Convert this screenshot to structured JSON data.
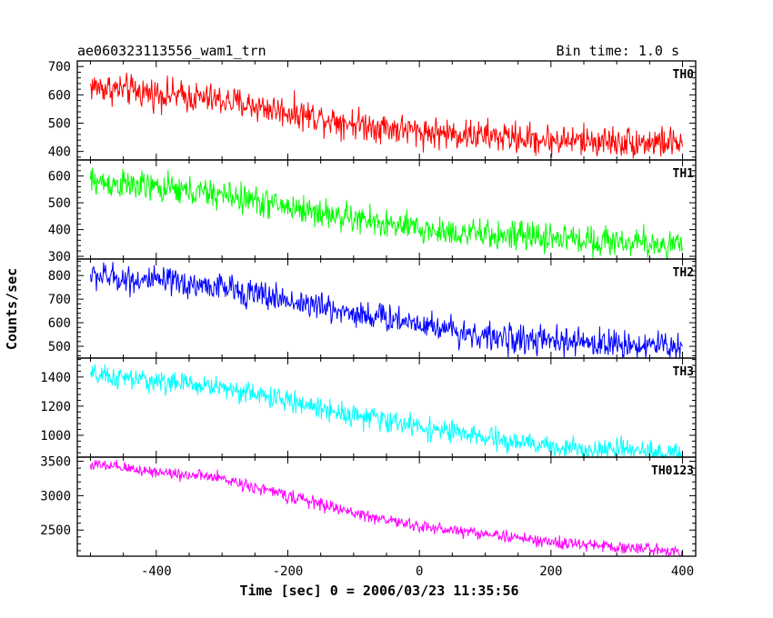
{
  "header": {
    "title": "ae060323113556_wam1_trn",
    "bin_time": "Bin time: 1.0 s"
  },
  "chart_data": {
    "type": "line",
    "title": "ae060323113556_wam1_trn",
    "xlabel": "Time [sec] 0 = 2006/03/23 11:35:56",
    "ylabel": "Counts/sec",
    "xlim": [
      -520,
      420
    ],
    "x_range": [
      -500,
      400
    ],
    "x_ticks": [
      -400,
      -200,
      0,
      200,
      400
    ],
    "shared_x": true,
    "grid": false,
    "panels": [
      {
        "name": "TH0",
        "color": "#ff0000",
        "ylim": [
          370,
          720
        ],
        "y_ticks": [
          400,
          500,
          600,
          700
        ],
        "trend_x": [
          -500,
          -300,
          -100,
          0,
          200,
          400
        ],
        "trend_y": [
          630,
          580,
          500,
          470,
          440,
          430
        ],
        "noise_amplitude": 55
      },
      {
        "name": "TH1",
        "color": "#00ff00",
        "ylim": [
          290,
          660
        ],
        "y_ticks": [
          300,
          400,
          500,
          600
        ],
        "trend_x": [
          -500,
          -300,
          -100,
          0,
          100,
          200,
          400
        ],
        "trend_y": [
          580,
          530,
          440,
          400,
          380,
          370,
          340
        ],
        "noise_amplitude": 55
      },
      {
        "name": "TH2",
        "color": "#0000ff",
        "ylim": [
          450,
          870
        ],
        "y_ticks": [
          500,
          600,
          700,
          800
        ],
        "trend_x": [
          -500,
          -300,
          -100,
          0,
          100,
          200,
          400
        ],
        "trend_y": [
          800,
          750,
          640,
          600,
          540,
          520,
          500
        ],
        "noise_amplitude": 60
      },
      {
        "name": "TH3",
        "color": "#00ffff",
        "ylim": [
          850,
          1530
        ],
        "y_ticks": [
          1000,
          1200,
          1400
        ],
        "trend_x": [
          -500,
          -300,
          -100,
          0,
          100,
          200,
          400
        ],
        "trend_y": [
          1410,
          1330,
          1140,
          1060,
          980,
          920,
          870
        ],
        "noise_amplitude": 75
      },
      {
        "name": "TH0123",
        "color": "#ff00ff",
        "ylim": [
          2120,
          3560
        ],
        "y_ticks": [
          2500,
          3000,
          3500
        ],
        "trend_x": [
          -500,
          -300,
          -100,
          0,
          100,
          200,
          400
        ],
        "trend_y": [
          3450,
          3250,
          2750,
          2550,
          2450,
          2320,
          2190
        ],
        "noise_amplitude": 90
      }
    ]
  }
}
